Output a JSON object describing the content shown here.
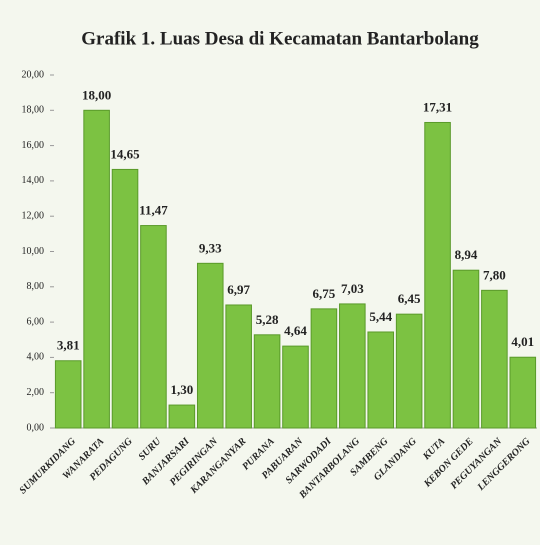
{
  "chart_data": {
    "type": "bar",
    "title": "Grafik 1. Luas Desa di Kecamatan Bantarbolang",
    "categories": [
      "SUMURKIDANG",
      "WANARATA",
      "PEDAGUNG",
      "SURU",
      "BANJARSARI",
      "PEGIRINGAN",
      "KARANGANYAR",
      "PURANA",
      "PABUARAN",
      "SARWODADI",
      "BANTARBOLANG",
      "SAMBENG",
      "GLANDANG",
      "KUTA",
      "KEBON GEDE",
      "PEGUYANGAN",
      "LENGGERONG"
    ],
    "values": [
      3.81,
      18.0,
      14.65,
      11.47,
      1.3,
      9.33,
      6.97,
      5.28,
      4.64,
      6.75,
      7.03,
      5.44,
      6.45,
      17.31,
      8.94,
      7.8,
      4.01
    ],
    "value_labels": [
      "3,81",
      "18,00",
      "14,65",
      "11,47",
      "1,30",
      "9,33",
      "6,97",
      "5,28",
      "4,64",
      "6,75",
      "7,03",
      "5,44",
      "6,45",
      "17,31",
      "8,94",
      "7,80",
      "4,01"
    ],
    "color": "#7cc242",
    "ylim": [
      0,
      20
    ],
    "yticks": [
      {
        "value": 0,
        "label": "0,00"
      },
      {
        "value": 2,
        "label": "2,00"
      },
      {
        "value": 4,
        "label": "4,00"
      },
      {
        "value": 6,
        "label": "6,00"
      },
      {
        "value": 8,
        "label": "8,00"
      },
      {
        "value": 10,
        "label": "10,00"
      },
      {
        "value": 12,
        "label": "12,00"
      },
      {
        "value": 14,
        "label": "14,00"
      },
      {
        "value": 16,
        "label": "16,00"
      },
      {
        "value": 18,
        "label": "18,00"
      },
      {
        "value": 20,
        "label": "20,00"
      }
    ],
    "grid": false
  }
}
